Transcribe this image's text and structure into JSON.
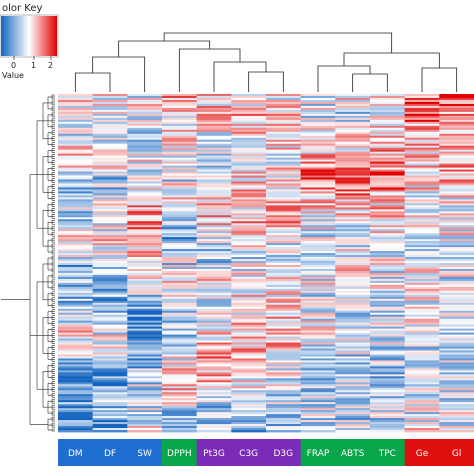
{
  "chart_data": {
    "type": "heatmap",
    "color_key": {
      "title": "olor Key",
      "tick_labels": [
        "0",
        "1",
        "2"
      ],
      "axis_label": "Value",
      "colors": [
        "#1565c0",
        "#ffffff",
        "#e00000"
      ]
    },
    "columns": [
      {
        "label": "DM",
        "group_color": "#1f6fd0"
      },
      {
        "label": "DF",
        "group_color": "#1f6fd0"
      },
      {
        "label": "SW",
        "group_color": "#1f6fd0"
      },
      {
        "label": "DPPH",
        "group_color": "#0aa64a"
      },
      {
        "label": "Pt3G",
        "group_color": "#7b2bb8"
      },
      {
        "label": "C3G",
        "group_color": "#7b2bb8"
      },
      {
        "label": "D3G",
        "group_color": "#7b2bb8"
      },
      {
        "label": "FRAP",
        "group_color": "#0aa64a"
      },
      {
        "label": "ABTS",
        "group_color": "#0aa64a"
      },
      {
        "label": "TPC",
        "group_color": "#0aa64a"
      },
      {
        "label": "Ge",
        "group_color": "#e01010"
      },
      {
        "label": "Gl",
        "group_color": "#e01010"
      }
    ],
    "column_value_profiles": [
      [
        1.0,
        0.9,
        0.8,
        1.3,
        0.5,
        0.7,
        0.8,
        1.2,
        0.6,
        0.5,
        0.6,
        1.0,
        1.1,
        0.3,
        0.2,
        0.5,
        0.3
      ],
      [
        1.0,
        0.8,
        0.9,
        1.2,
        0.6,
        0.8,
        0.9,
        1.1,
        0.7,
        0.6,
        0.5,
        0.9,
        0.9,
        0.4,
        0.3,
        0.6,
        0.3
      ],
      [
        0.9,
        1.0,
        0.7,
        1.0,
        0.9,
        1.3,
        1.4,
        1.3,
        1.1,
        0.8,
        0.5,
        0.2,
        0.3,
        0.6,
        0.8,
        0.9,
        0.9
      ],
      [
        1.4,
        1.0,
        1.2,
        0.9,
        0.8,
        1.1,
        0.6,
        0.5,
        0.8,
        1.0,
        0.7,
        0.6,
        0.8,
        1.1,
        1.2,
        0.7,
        0.4
      ],
      [
        1.1,
        1.2,
        1.0,
        0.8,
        1.0,
        1.1,
        1.3,
        0.8,
        0.7,
        1.2,
        0.9,
        1.0,
        1.3,
        1.4,
        1.0,
        0.6,
        0.6
      ],
      [
        1.0,
        1.3,
        1.1,
        1.0,
        1.2,
        1.0,
        1.3,
        0.9,
        0.8,
        1.1,
        1.0,
        1.2,
        1.3,
        1.1,
        0.9,
        0.7,
        0.6
      ],
      [
        1.0,
        1.2,
        1.2,
        1.0,
        1.1,
        1.1,
        1.4,
        0.9,
        0.8,
        1.0,
        1.1,
        1.2,
        1.2,
        1.0,
        0.8,
        0.7,
        0.6
      ],
      [
        1.0,
        0.8,
        1.0,
        1.3,
        1.7,
        1.3,
        1.0,
        0.8,
        1.0,
        0.9,
        0.8,
        0.9,
        0.8,
        0.7,
        0.6,
        0.8,
        0.8
      ],
      [
        1.0,
        0.8,
        1.1,
        1.2,
        1.6,
        1.3,
        1.0,
        0.8,
        1.0,
        1.0,
        0.8,
        0.9,
        0.8,
        0.7,
        0.7,
        0.8,
        0.7
      ],
      [
        1.2,
        1.0,
        1.2,
        1.4,
        1.7,
        1.2,
        1.1,
        0.8,
        0.9,
        0.9,
        0.8,
        0.8,
        0.8,
        0.7,
        0.6,
        0.7,
        0.7
      ],
      [
        1.5,
        1.6,
        1.3,
        1.2,
        1.1,
        1.0,
        1.0,
        0.9,
        1.0,
        0.9,
        1.0,
        0.9,
        0.8,
        0.8,
        0.8,
        0.9,
        1.0
      ],
      [
        1.8,
        1.5,
        1.3,
        1.3,
        1.2,
        1.0,
        1.0,
        0.9,
        0.8,
        0.9,
        0.8,
        0.9,
        0.8,
        0.8,
        0.9,
        0.8,
        0.9
      ]
    ],
    "row_count": 170,
    "value_range": [
      0,
      2
    ]
  }
}
